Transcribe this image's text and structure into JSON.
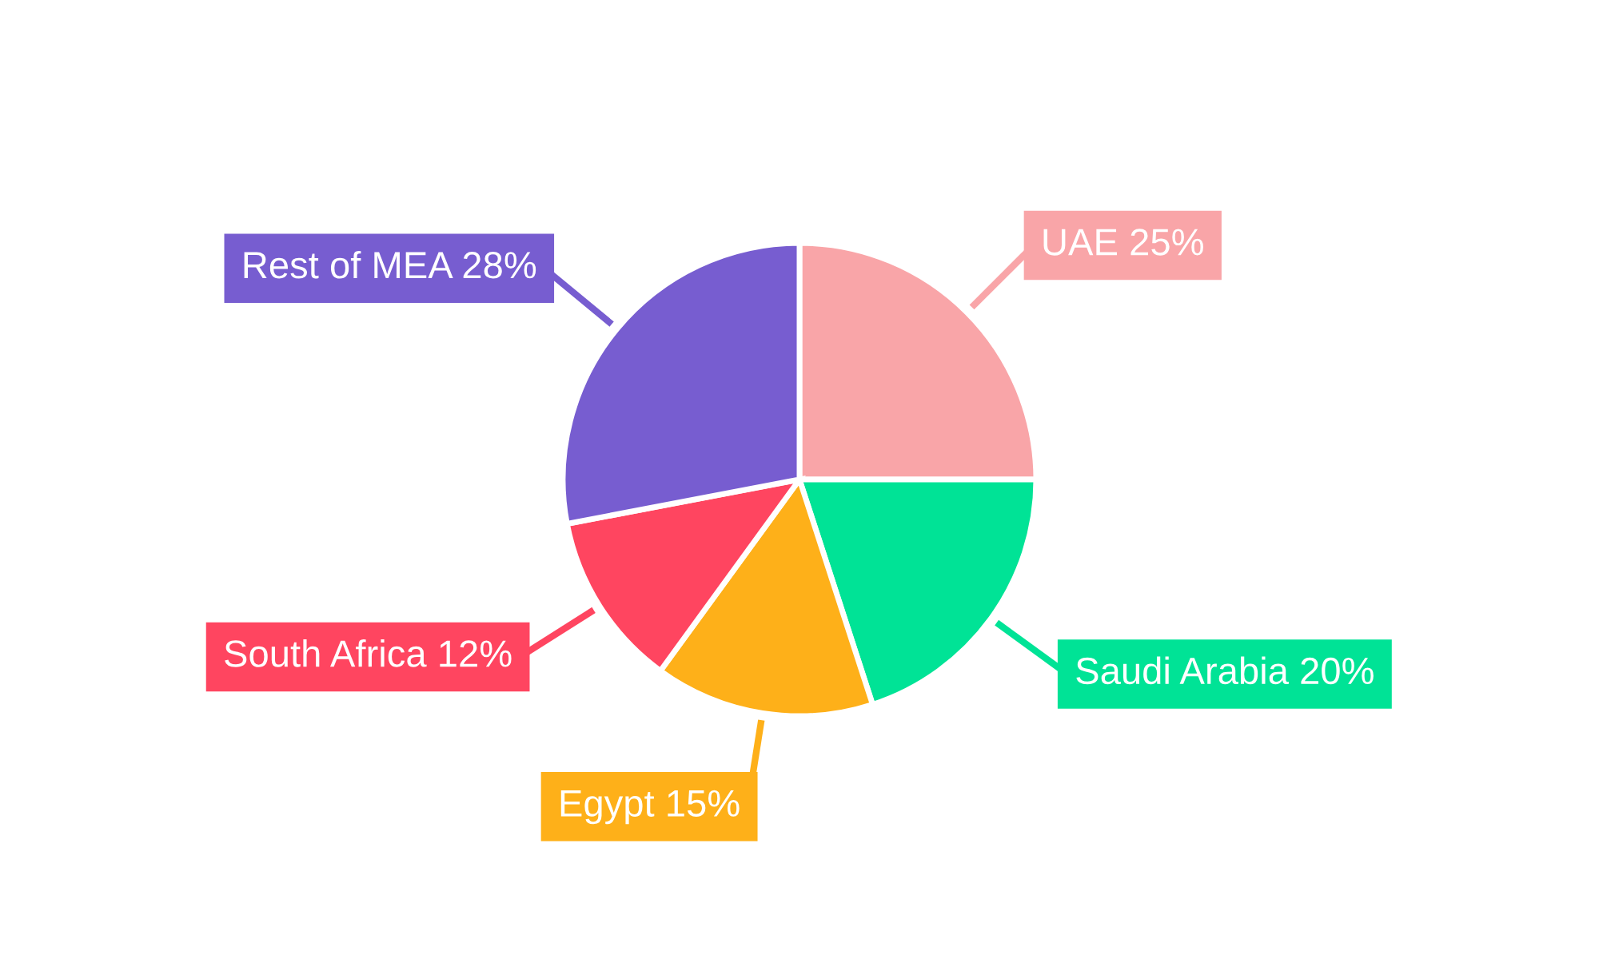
{
  "chart_data": {
    "type": "pie",
    "categories": [
      "UAE",
      "Saudi Arabia",
      "Egypt",
      "South Africa",
      "Rest of MEA"
    ],
    "values": [
      25,
      20,
      15,
      12,
      28
    ],
    "value_labels": [
      "25%",
      "20%",
      "15%",
      "12%",
      "28%"
    ],
    "colors": [
      "#f9a5a8",
      "#00e396",
      "#feb019",
      "#ff4560",
      "#775dd0"
    ],
    "legend": false
  }
}
